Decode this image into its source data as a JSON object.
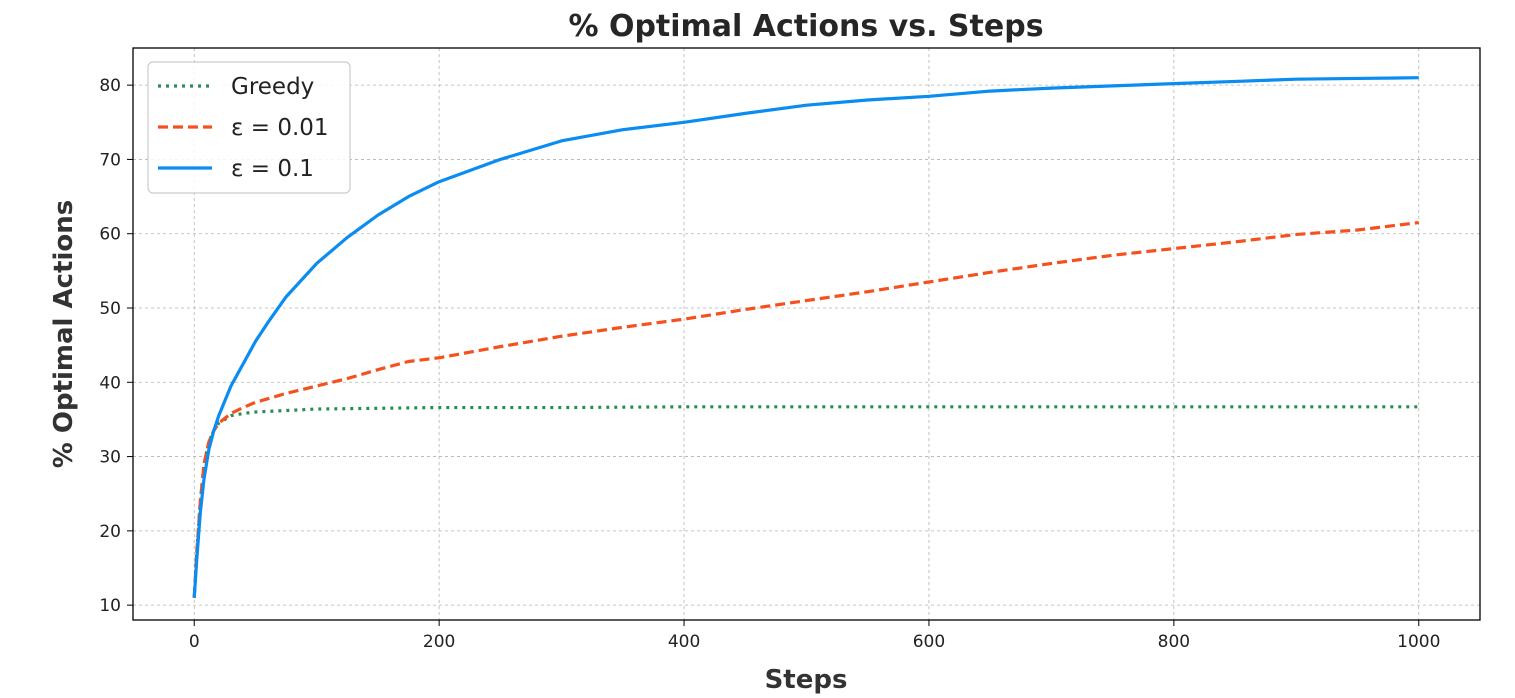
{
  "chart_data": {
    "type": "line",
    "title": "% Optimal Actions vs. Steps",
    "xlabel": "Steps",
    "ylabel": "% Optimal Actions",
    "xlim": [
      -50,
      1050
    ],
    "ylim": [
      8,
      85
    ],
    "xticks": [
      0,
      200,
      400,
      600,
      800,
      1000
    ],
    "yticks": [
      10,
      20,
      30,
      40,
      50,
      60,
      70,
      80
    ],
    "grid": true,
    "legend_position": "top-left",
    "series": [
      {
        "name": "Greedy",
        "color": "#2e8b57",
        "style": "dotted",
        "x": [
          0,
          2,
          5,
          8,
          12,
          16,
          20,
          30,
          40,
          50,
          75,
          100,
          150,
          200,
          300,
          400,
          600,
          800,
          1000
        ],
        "y": [
          11,
          17,
          24,
          29,
          32,
          33.5,
          34.5,
          35.5,
          35.8,
          36,
          36.2,
          36.4,
          36.5,
          36.6,
          36.6,
          36.7,
          36.7,
          36.7,
          36.7
        ]
      },
      {
        "name": "ε = 0.01",
        "color": "#f4511e",
        "style": "dashed",
        "x": [
          0,
          2,
          5,
          8,
          12,
          16,
          20,
          30,
          40,
          50,
          75,
          100,
          125,
          150,
          175,
          200,
          250,
          300,
          350,
          400,
          450,
          500,
          550,
          600,
          650,
          700,
          750,
          800,
          850,
          900,
          950,
          1000
        ],
        "y": [
          11,
          17,
          24,
          29,
          32,
          33.5,
          34.5,
          35.8,
          36.6,
          37.3,
          38.5,
          39.5,
          40.5,
          41.7,
          42.8,
          43.3,
          44.8,
          46.2,
          47.4,
          48.5,
          49.8,
          51,
          52.2,
          53.5,
          54.8,
          56,
          57.1,
          58,
          58.9,
          59.9,
          60.5,
          61.5
        ]
      },
      {
        "name": "ε = 0.1",
        "color": "#0a8cf0",
        "style": "solid",
        "x": [
          0,
          2,
          5,
          8,
          12,
          16,
          20,
          30,
          40,
          50,
          60,
          75,
          100,
          125,
          150,
          175,
          200,
          250,
          300,
          350,
          400,
          450,
          500,
          550,
          600,
          650,
          700,
          750,
          800,
          850,
          900,
          950,
          1000
        ],
        "y": [
          11,
          16,
          22.5,
          27,
          31,
          33.5,
          35.5,
          39.5,
          42.5,
          45.5,
          48,
          51.5,
          56,
          59.5,
          62.5,
          65,
          67,
          70,
          72.5,
          74,
          75,
          76.2,
          77.3,
          78,
          78.5,
          79.2,
          79.6,
          79.9,
          80.2,
          80.5,
          80.8,
          80.9,
          81
        ]
      }
    ]
  }
}
